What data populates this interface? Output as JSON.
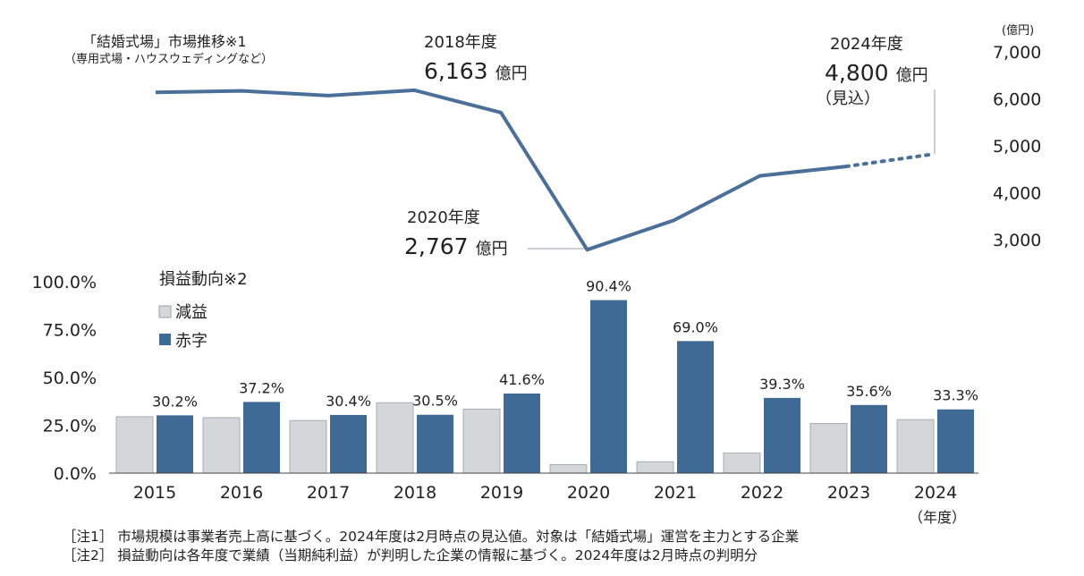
{
  "chart_data": [
    {
      "type": "line",
      "title": "「結婚式場」市場推移※1",
      "subtitle": "（専用式場・ハウスウェディングなど）",
      "unit": "(億円)",
      "x": [
        2015,
        2016,
        2017,
        2018,
        2019,
        2020,
        2021,
        2022,
        2023,
        2024
      ],
      "values": [
        6120,
        6150,
        6050,
        6163,
        5690,
        2767,
        3390,
        4340,
        4540,
        4800
      ],
      "estimated_from_index": 8,
      "ylim": [
        3000,
        7000
      ],
      "yticks": [
        "7,000",
        "6,000",
        "5,000",
        "4,000",
        "3,000"
      ],
      "annotations": [
        {
          "head": "2018年度",
          "value": "6,163",
          "unit": "億円",
          "note": ""
        },
        {
          "head": "2020年度",
          "value": "2,767",
          "unit": "億円",
          "note": ""
        },
        {
          "head": "2024年度",
          "value": "4,800",
          "unit": "億円",
          "note": "（見込）"
        }
      ]
    },
    {
      "type": "bar",
      "title": "損益動向※2",
      "categories": [
        "2015",
        "2016",
        "2017",
        "2018",
        "2019",
        "2020",
        "2021",
        "2022",
        "2023",
        "2024"
      ],
      "xlabel_suffix": "（年度）",
      "ylim": [
        0,
        100
      ],
      "yticks": [
        "100.0%",
        "75.0%",
        "50.0%",
        "25.0%",
        "0.0%"
      ],
      "series": [
        {
          "name": "減益",
          "color": "#d3d7da",
          "values": [
            29.5,
            29.0,
            27.5,
            36.8,
            33.5,
            4.5,
            6.0,
            10.5,
            26.0,
            28.0
          ]
        },
        {
          "name": "赤字",
          "color": "#3f6a96",
          "values": [
            30.2,
            37.2,
            30.4,
            30.5,
            41.6,
            90.4,
            69.0,
            39.3,
            35.6,
            33.3
          ],
          "labels": [
            "30.2%",
            "37.2%",
            "30.4%",
            "30.5%",
            "41.6%",
            "90.4%",
            "69.0%",
            "39.3%",
            "35.6%",
            "33.3%"
          ]
        }
      ]
    }
  ],
  "colors": {
    "line": "#4a6f99",
    "bar_red": "#3f6a96",
    "bar_gray": "#d3d7da",
    "leader": "#9aa0a6"
  },
  "notes": [
    "［注1］ 市場規模は事業者売上高に基づく。2024年度は2月時点の見込値。対象は「結婚式場」運営を主力とする企業",
    "［注2］ 損益動向は各年度で業績（当期純利益）が判明した企業の情報に基づく。2024年度は2月時点の判明分"
  ]
}
